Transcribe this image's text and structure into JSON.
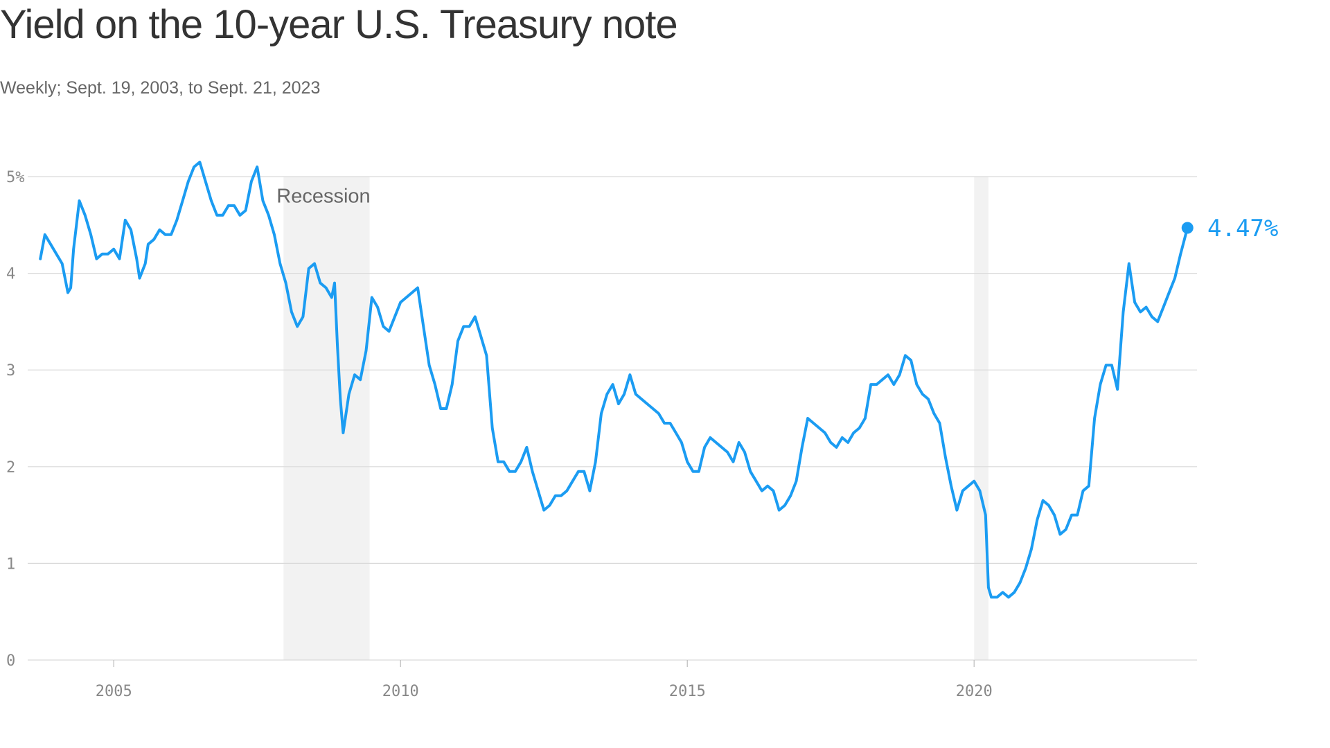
{
  "title": "Yield on the 10-year U.S. Treasury note",
  "subtitle": "Weekly; Sept. 19, 2003, to Sept. 21, 2023",
  "colors": {
    "line": "#1b9cf2",
    "grid": "#d9d9d9",
    "recession": "#f2f2f2",
    "tick": "#888888"
  },
  "chart_data": {
    "type": "line",
    "title": "Yield on the 10-year U.S. Treasury note",
    "subtitle": "Weekly; Sept. 19, 2003, to Sept. 21, 2023",
    "xlabel": "",
    "ylabel": "",
    "xlim": [
      2003.5,
      2023.85
    ],
    "ylim": [
      0,
      5
    ],
    "x_ticks": [
      2005,
      2010,
      2015,
      2020
    ],
    "x_tick_labels": [
      "2005",
      "2010",
      "2015",
      "2020"
    ],
    "y_ticks": [
      0,
      1,
      2,
      3,
      4,
      5
    ],
    "y_tick_labels": [
      "0",
      "1",
      "2",
      "3",
      "4",
      "5%"
    ],
    "grid": true,
    "recessions": [
      {
        "start": 2007.96,
        "end": 2009.46,
        "label": "Recession"
      },
      {
        "start": 2020.0,
        "end": 2020.25,
        "label": ""
      }
    ],
    "last_value_label": "4.47%",
    "series": [
      {
        "name": "",
        "x": [
          2003.72,
          2003.8,
          2003.9,
          2004.0,
          2004.1,
          2004.2,
          2004.25,
          2004.3,
          2004.4,
          2004.5,
          2004.6,
          2004.7,
          2004.8,
          2004.9,
          2005.0,
          2005.1,
          2005.2,
          2005.3,
          2005.4,
          2005.45,
          2005.55,
          2005.6,
          2005.7,
          2005.8,
          2005.9,
          2006.0,
          2006.1,
          2006.2,
          2006.3,
          2006.4,
          2006.5,
          2006.6,
          2006.7,
          2006.8,
          2006.9,
          2007.0,
          2007.1,
          2007.2,
          2007.3,
          2007.4,
          2007.5,
          2007.6,
          2007.7,
          2007.8,
          2007.9,
          2008.0,
          2008.1,
          2008.2,
          2008.3,
          2008.4,
          2008.5,
          2008.6,
          2008.7,
          2008.8,
          2008.85,
          2008.9,
          2008.95,
          2009.0,
          2009.1,
          2009.2,
          2009.3,
          2009.4,
          2009.5,
          2009.6,
          2009.7,
          2009.8,
          2009.9,
          2010.0,
          2010.1,
          2010.2,
          2010.3,
          2010.4,
          2010.5,
          2010.6,
          2010.7,
          2010.8,
          2010.9,
          2011.0,
          2011.1,
          2011.2,
          2011.3,
          2011.4,
          2011.5,
          2011.6,
          2011.7,
          2011.8,
          2011.9,
          2012.0,
          2012.1,
          2012.2,
          2012.3,
          2012.4,
          2012.5,
          2012.6,
          2012.7,
          2012.8,
          2012.9,
          2013.0,
          2013.1,
          2013.2,
          2013.3,
          2013.4,
          2013.5,
          2013.6,
          2013.7,
          2013.8,
          2013.9,
          2014.0,
          2014.1,
          2014.2,
          2014.3,
          2014.4,
          2014.5,
          2014.6,
          2014.7,
          2014.8,
          2014.9,
          2015.0,
          2015.1,
          2015.2,
          2015.3,
          2015.4,
          2015.5,
          2015.6,
          2015.7,
          2015.8,
          2015.9,
          2016.0,
          2016.1,
          2016.2,
          2016.3,
          2016.4,
          2016.5,
          2016.6,
          2016.7,
          2016.8,
          2016.9,
          2017.0,
          2017.1,
          2017.2,
          2017.3,
          2017.4,
          2017.5,
          2017.6,
          2017.7,
          2017.8,
          2017.9,
          2018.0,
          2018.1,
          2018.2,
          2018.3,
          2018.4,
          2018.5,
          2018.6,
          2018.7,
          2018.8,
          2018.9,
          2019.0,
          2019.1,
          2019.2,
          2019.3,
          2019.4,
          2019.5,
          2019.6,
          2019.7,
          2019.8,
          2019.9,
          2020.0,
          2020.1,
          2020.2,
          2020.25,
          2020.3,
          2020.4,
          2020.5,
          2020.6,
          2020.7,
          2020.8,
          2020.9,
          2021.0,
          2021.1,
          2021.2,
          2021.3,
          2021.4,
          2021.5,
          2021.6,
          2021.7,
          2021.8,
          2021.9,
          2022.0,
          2022.1,
          2022.2,
          2022.3,
          2022.4,
          2022.5,
          2022.6,
          2022.7,
          2022.8,
          2022.9,
          2023.0,
          2023.1,
          2023.2,
          2023.3,
          2023.4,
          2023.5,
          2023.6,
          2023.72
        ],
        "values": [
          4.15,
          4.4,
          4.3,
          4.2,
          4.1,
          3.8,
          3.85,
          4.25,
          4.75,
          4.6,
          4.4,
          4.15,
          4.2,
          4.2,
          4.25,
          4.15,
          4.55,
          4.45,
          4.15,
          3.95,
          4.1,
          4.3,
          4.35,
          4.45,
          4.4,
          4.4,
          4.55,
          4.75,
          4.95,
          5.1,
          5.15,
          4.95,
          4.75,
          4.6,
          4.6,
          4.7,
          4.7,
          4.6,
          4.65,
          4.95,
          5.1,
          4.75,
          4.6,
          4.4,
          4.1,
          3.9,
          3.6,
          3.45,
          3.55,
          4.05,
          4.1,
          3.9,
          3.85,
          3.75,
          3.9,
          3.25,
          2.7,
          2.35,
          2.75,
          2.95,
          2.9,
          3.2,
          3.75,
          3.65,
          3.45,
          3.4,
          3.55,
          3.7,
          3.75,
          3.8,
          3.85,
          3.45,
          3.05,
          2.85,
          2.6,
          2.6,
          2.85,
          3.3,
          3.45,
          3.45,
          3.55,
          3.35,
          3.15,
          2.4,
          2.05,
          2.05,
          1.95,
          1.95,
          2.05,
          2.2,
          1.95,
          1.75,
          1.55,
          1.6,
          1.7,
          1.7,
          1.75,
          1.85,
          1.95,
          1.95,
          1.75,
          2.05,
          2.55,
          2.75,
          2.85,
          2.65,
          2.75,
          2.95,
          2.75,
          2.7,
          2.65,
          2.6,
          2.55,
          2.45,
          2.45,
          2.35,
          2.25,
          2.05,
          1.95,
          1.95,
          2.2,
          2.3,
          2.25,
          2.2,
          2.15,
          2.05,
          2.25,
          2.15,
          1.95,
          1.85,
          1.75,
          1.8,
          1.75,
          1.55,
          1.6,
          1.7,
          1.85,
          2.2,
          2.5,
          2.45,
          2.4,
          2.35,
          2.25,
          2.2,
          2.3,
          2.25,
          2.35,
          2.4,
          2.5,
          2.85,
          2.85,
          2.9,
          2.95,
          2.85,
          2.95,
          3.15,
          3.1,
          2.85,
          2.75,
          2.7,
          2.55,
          2.45,
          2.1,
          1.8,
          1.55,
          1.75,
          1.8,
          1.85,
          1.75,
          1.5,
          0.75,
          0.65,
          0.65,
          0.7,
          0.65,
          0.7,
          0.8,
          0.95,
          1.15,
          1.45,
          1.65,
          1.6,
          1.5,
          1.3,
          1.35,
          1.5,
          1.5,
          1.75,
          1.8,
          2.5,
          2.85,
          3.05,
          3.05,
          2.8,
          3.6,
          4.1,
          3.7,
          3.6,
          3.65,
          3.55,
          3.5,
          3.65,
          3.8,
          3.95,
          4.2,
          4.47
        ]
      }
    ]
  }
}
